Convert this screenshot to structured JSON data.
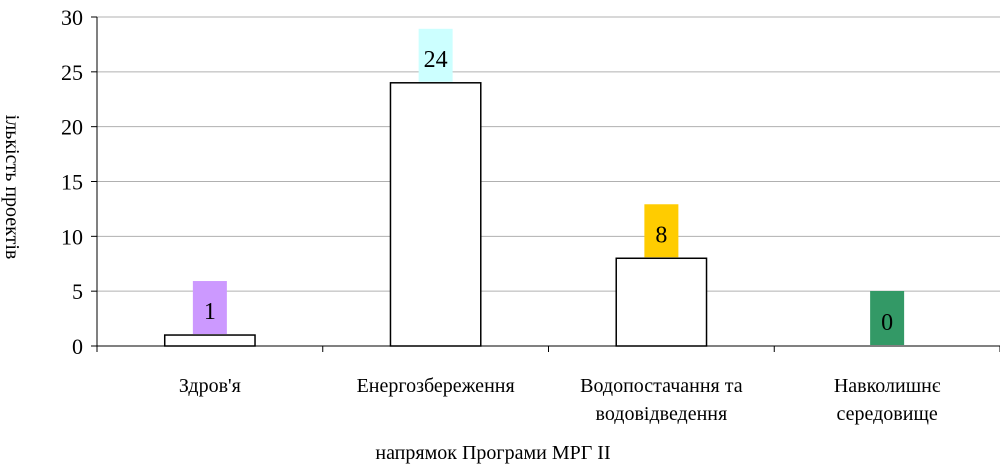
{
  "chart_data": {
    "type": "bar",
    "categories": [
      [
        "Здров'я"
      ],
      [
        "Енергозбереження"
      ],
      [
        "Водопостачання та",
        "водовідведення"
      ],
      [
        "Навколишнє",
        "середовище"
      ]
    ],
    "values": [
      1,
      24,
      8,
      0
    ],
    "label_colors": [
      "#cc99ff",
      "#ccffff",
      "#ffcc00",
      "#339966"
    ],
    "bar_fill": "#ffffff",
    "bar_stroke": "#000000",
    "xlabel": "напрямок Програми МРГ ІІ",
    "ylabel": "ількість проектів",
    "ylim": [
      0,
      30
    ],
    "yticks": [
      0,
      5,
      10,
      15,
      20,
      25,
      30
    ],
    "grid": true,
    "gridline_color": "#b0b0b0",
    "legend": "none"
  }
}
